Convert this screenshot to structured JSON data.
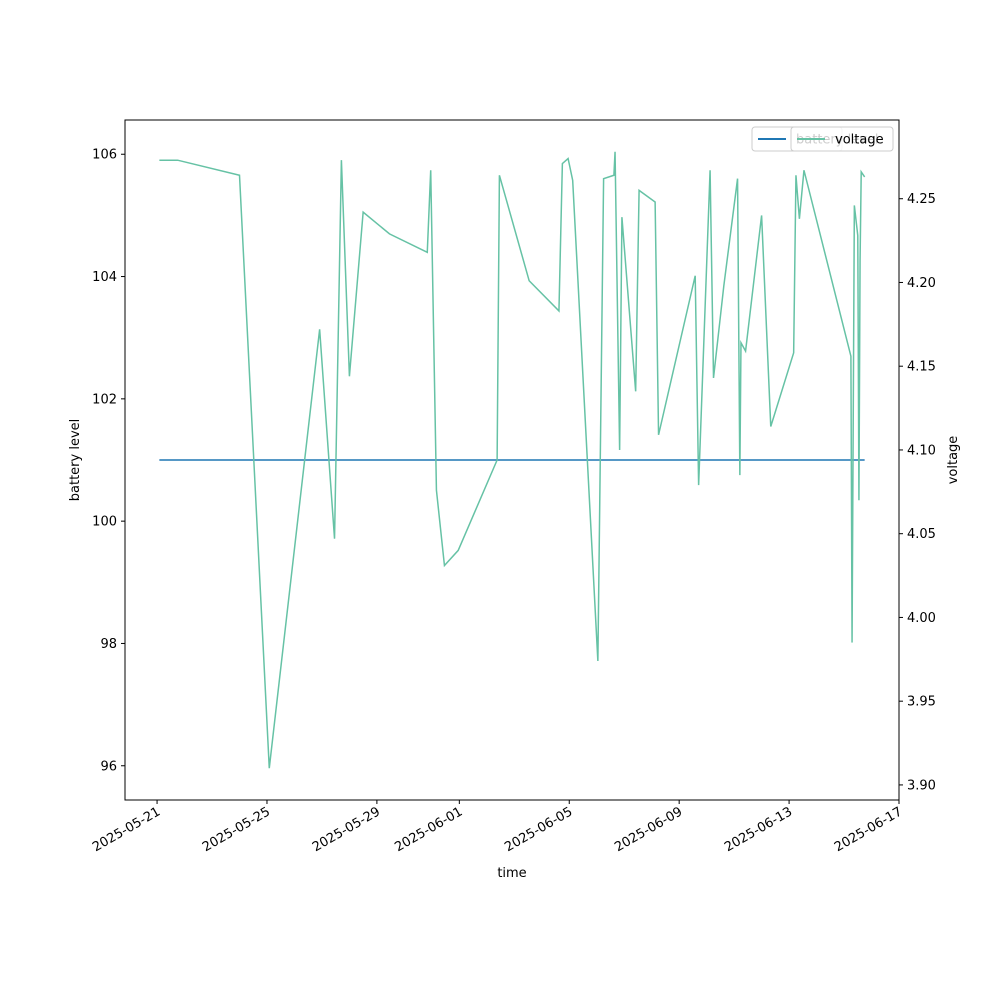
{
  "chart_data": {
    "type": "line",
    "xlabel": "time",
    "ylabel": "battery level",
    "y2label": "voltage",
    "x": [
      "2025-05-21 02:00",
      "2025-05-21 18:00",
      "2025-05-24 00:00",
      "2025-05-25 02:00",
      "2025-05-26 22:00",
      "2025-05-27 11:00",
      "2025-05-27 17:00",
      "2025-05-28 00:00",
      "2025-05-28 12:00",
      "2025-05-29 11:00",
      "2025-05-30 20:00",
      "2025-05-30 23:00",
      "2025-05-31 04:00",
      "2025-05-31 11:00",
      "2025-05-31 23:00",
      "2025-06-02 09:00",
      "2025-06-02 11:00",
      "2025-06-03 13:00",
      "2025-06-04 15:00",
      "2025-06-04 18:00",
      "2025-06-04 23:00",
      "2025-06-05 03:00",
      "2025-06-06 01:00",
      "2025-06-06 06:00",
      "2025-06-06 15:00",
      "2025-06-06 16:00",
      "2025-06-06 20:00",
      "2025-06-06 22:00",
      "2025-06-07 10:00",
      "2025-06-07 13:00",
      "2025-06-08 03:00",
      "2025-06-08 06:00",
      "2025-06-09 14:00",
      "2025-06-09 17:00",
      "2025-06-10 03:00",
      "2025-06-10 06:00",
      "2025-06-10 15:00",
      "2025-06-11 03:00",
      "2025-06-11 05:00",
      "2025-06-11 06:00",
      "2025-06-11 10:00",
      "2025-06-12 00:00",
      "2025-06-12 08:00",
      "2025-06-13 04:00",
      "2025-06-13 06:00",
      "2025-06-13 09:00",
      "2025-06-13 13:00",
      "2025-06-15 06:00",
      "2025-06-15 07:00",
      "2025-06-15 09:00",
      "2025-06-15 12:00",
      "2025-06-15 13:00",
      "2025-06-15 14:00",
      "2025-06-15 15:00",
      "2025-06-15 18:00"
    ],
    "series": [
      {
        "name": "battery level",
        "color": "#1f77b4",
        "values": [
          101,
          101,
          101,
          101,
          101,
          101,
          101,
          101,
          101,
          101,
          101,
          101,
          101,
          101,
          101,
          101,
          101,
          101,
          101,
          101,
          101,
          101,
          101,
          101,
          101,
          101,
          101,
          101,
          101,
          101,
          101,
          101,
          101,
          101,
          101,
          101,
          101,
          101,
          101,
          101,
          101,
          101,
          101,
          101,
          101,
          101,
          101,
          101,
          101,
          101,
          101,
          101,
          101,
          101,
          101
        ]
      },
      {
        "name": "voltage",
        "color": "#66c2a5",
        "axis": "y2",
        "values": [
          4.273,
          4.273,
          4.264,
          3.91,
          4.172,
          4.047,
          4.273,
          4.144,
          4.242,
          4.229,
          4.218,
          4.267,
          4.076,
          4.031,
          4.04,
          4.094,
          4.264,
          4.201,
          4.183,
          4.271,
          4.274,
          4.261,
          3.974,
          4.262,
          4.264,
          4.278,
          4.1,
          4.239,
          4.135,
          4.255,
          4.248,
          4.109,
          4.204,
          4.079,
          4.267,
          4.143,
          4.198,
          4.262,
          4.085,
          4.164,
          4.159,
          4.24,
          4.114,
          4.158,
          4.264,
          4.238,
          4.267,
          4.156,
          3.985,
          4.246,
          4.228,
          4.07,
          4.213,
          4.266,
          4.263
        ]
      }
    ],
    "xlim": [
      "2025-05-19 20:00",
      "2025-06-17 00:00"
    ],
    "xticks": [
      "2025-05-21",
      "2025-05-25",
      "2025-05-29",
      "2025-06-01",
      "2025-06-05",
      "2025-06-09",
      "2025-06-13",
      "2025-06-17"
    ],
    "ylim": [
      95.44,
      106.56
    ],
    "yticks": [
      96,
      98,
      100,
      102,
      104,
      106
    ],
    "y2lim": [
      3.891,
      4.297
    ],
    "y2ticks": [
      {
        "value": 3.9,
        "label": "3.90"
      },
      3.95,
      {
        "value": 4.0,
        "label": "4.00"
      },
      4.05,
      {
        "value": 4.1,
        "label": "4.10"
      },
      4.15,
      {
        "value": 4.2,
        "label": "4.20"
      },
      4.25
    ],
    "legend": "upper right"
  }
}
